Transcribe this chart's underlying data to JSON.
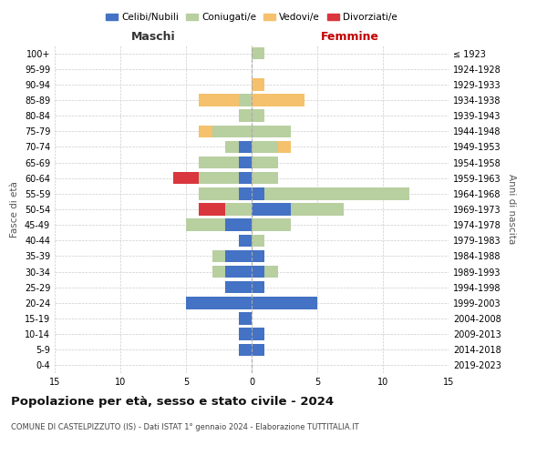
{
  "age_groups": [
    "0-4",
    "5-9",
    "10-14",
    "15-19",
    "20-24",
    "25-29",
    "30-34",
    "35-39",
    "40-44",
    "45-49",
    "50-54",
    "55-59",
    "60-64",
    "65-69",
    "70-74",
    "75-79",
    "80-84",
    "85-89",
    "90-94",
    "95-99",
    "100+"
  ],
  "birth_years": [
    "2019-2023",
    "2014-2018",
    "2009-2013",
    "2004-2008",
    "1999-2003",
    "1994-1998",
    "1989-1993",
    "1984-1988",
    "1979-1983",
    "1974-1978",
    "1969-1973",
    "1964-1968",
    "1959-1963",
    "1954-1958",
    "1949-1953",
    "1944-1948",
    "1939-1943",
    "1934-1938",
    "1929-1933",
    "1924-1928",
    "≤ 1923"
  ],
  "maschi": {
    "celibi": [
      0,
      1,
      1,
      1,
      5,
      2,
      2,
      2,
      1,
      2,
      0,
      1,
      1,
      1,
      1,
      0,
      0,
      0,
      0,
      0,
      0
    ],
    "coniugati": [
      0,
      0,
      0,
      0,
      0,
      0,
      1,
      1,
      0,
      3,
      2,
      3,
      3,
      3,
      1,
      3,
      1,
      1,
      0,
      0,
      0
    ],
    "vedovi": [
      0,
      0,
      0,
      0,
      0,
      0,
      0,
      0,
      0,
      0,
      0,
      0,
      0,
      0,
      0,
      1,
      0,
      3,
      0,
      0,
      0
    ],
    "divorziati": [
      0,
      0,
      0,
      0,
      0,
      0,
      0,
      0,
      0,
      0,
      2,
      0,
      2,
      0,
      0,
      0,
      0,
      0,
      0,
      0,
      0
    ]
  },
  "femmine": {
    "nubili": [
      0,
      1,
      1,
      0,
      5,
      1,
      1,
      1,
      0,
      0,
      3,
      1,
      0,
      0,
      0,
      0,
      0,
      0,
      0,
      0,
      0
    ],
    "coniugate": [
      0,
      0,
      0,
      0,
      0,
      0,
      1,
      0,
      1,
      3,
      4,
      11,
      2,
      2,
      2,
      3,
      1,
      0,
      0,
      0,
      1
    ],
    "vedove": [
      0,
      0,
      0,
      0,
      0,
      0,
      0,
      0,
      0,
      0,
      0,
      0,
      0,
      0,
      1,
      0,
      0,
      4,
      1,
      0,
      0
    ],
    "divorziate": [
      0,
      0,
      0,
      0,
      0,
      0,
      0,
      0,
      0,
      0,
      0,
      0,
      0,
      0,
      0,
      0,
      0,
      0,
      0,
      0,
      0
    ]
  },
  "colors": {
    "celibi_nubili": "#4472c4",
    "coniugati": "#b8cfa0",
    "vedovi": "#f5c16c",
    "divorziati": "#d9363e"
  },
  "title": "Popolazione per età, sesso e stato civile - 2024",
  "subtitle": "COMUNE DI CASTELPIZZUTO (IS) - Dati ISTAT 1° gennaio 2024 - Elaborazione TUTTITALIA.IT",
  "xlabel_left": "Maschi",
  "xlabel_right": "Femmine",
  "ylabel_left": "Fasce di età",
  "ylabel_right": "Anni di nascita",
  "xlim": 15,
  "legend": [
    "Celibi/Nubili",
    "Coniugati/e",
    "Vedovi/e",
    "Divorziati/e"
  ]
}
